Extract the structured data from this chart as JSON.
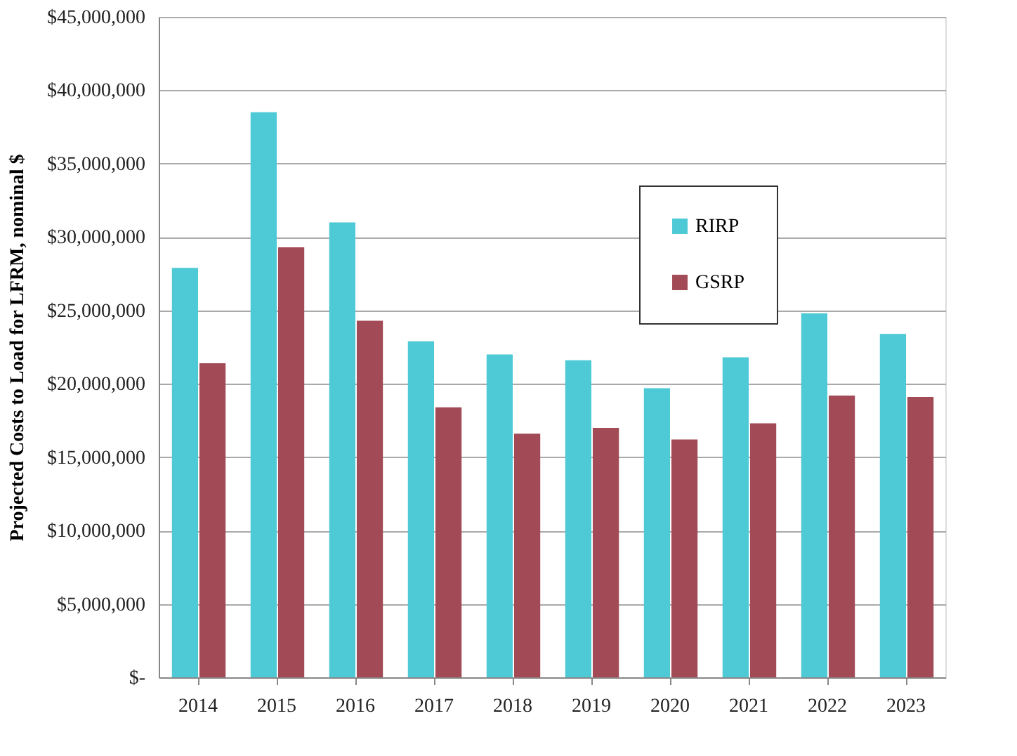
{
  "chart_data": {
    "type": "bar",
    "ylabel": "Projected Costs to Load for LFRM, nominal $",
    "categories": [
      "2014",
      "2015",
      "2016",
      "2017",
      "2018",
      "2019",
      "2020",
      "2021",
      "2022",
      "2023"
    ],
    "series": [
      {
        "name": "RIRP",
        "color": "#4ec9d6",
        "values": [
          27900000,
          38500000,
          31000000,
          22900000,
          22000000,
          21600000,
          19700000,
          21800000,
          24800000,
          23400000
        ]
      },
      {
        "name": "GSRP",
        "color": "#a24a55",
        "values": [
          21400000,
          29300000,
          24300000,
          18400000,
          16600000,
          17000000,
          16200000,
          17300000,
          19200000,
          19100000
        ]
      }
    ],
    "ylim": [
      0,
      45000000
    ],
    "yticks": [
      {
        "value": 0,
        "label": "$-"
      },
      {
        "value": 5000000,
        "label": "$5,000,000"
      },
      {
        "value": 10000000,
        "label": "$10,000,000"
      },
      {
        "value": 15000000,
        "label": "$15,000,000"
      },
      {
        "value": 20000000,
        "label": "$20,000,000"
      },
      {
        "value": 25000000,
        "label": "$25,000,000"
      },
      {
        "value": 30000000,
        "label": "$30,000,000"
      },
      {
        "value": 35000000,
        "label": "$35,000,000"
      },
      {
        "value": 40000000,
        "label": "$40,000,000"
      },
      {
        "value": 45000000,
        "label": "$45,000,000"
      }
    ],
    "grid": "y",
    "legend": "top right"
  }
}
